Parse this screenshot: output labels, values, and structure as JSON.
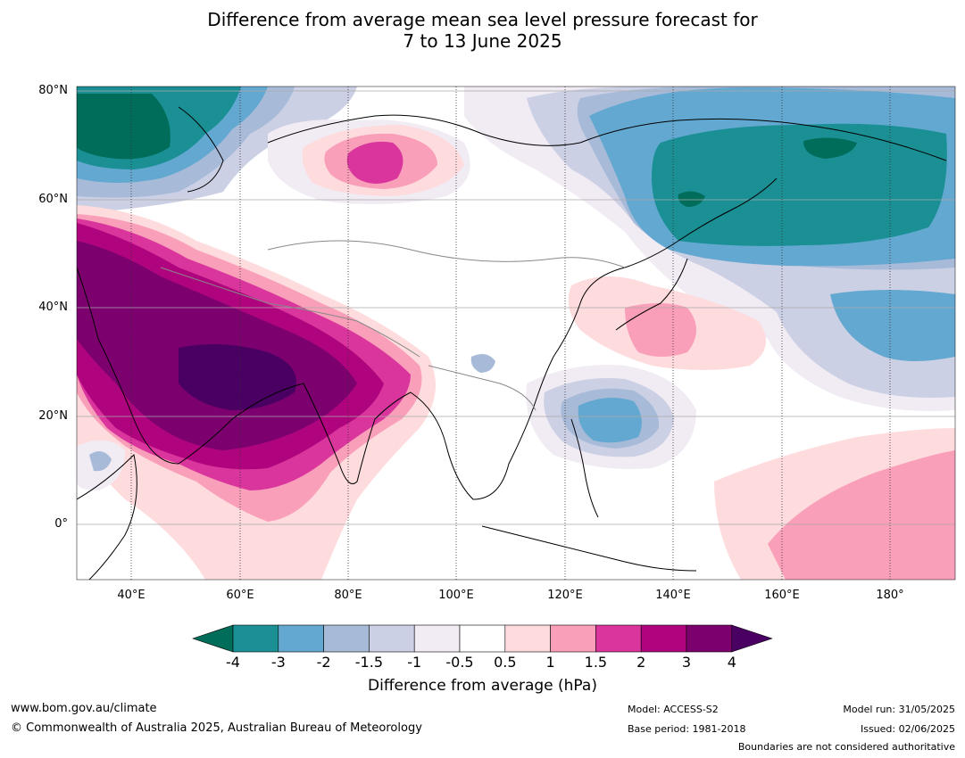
{
  "title": {
    "line1": "Difference from average mean sea level pressure forecast for",
    "line2": "7 to 13 June 2025"
  },
  "map": {
    "lat_labels": [
      "80°N",
      "60°N",
      "40°N",
      "20°N",
      "0°"
    ],
    "lon_labels": [
      "40°E",
      "60°E",
      "80°E",
      "100°E",
      "120°E",
      "140°E",
      "160°E",
      "180°"
    ],
    "lon_range": [
      30,
      192
    ],
    "lat_range": [
      -10,
      81
    ],
    "anomaly_regions": [
      {
        "name": "north-atlantic-low",
        "value": -4
      },
      {
        "name": "siberia-east-low",
        "value": -3
      },
      {
        "name": "middle-east-high",
        "value": 4
      },
      {
        "name": "arctic-russia-high",
        "value": 1.5
      },
      {
        "name": "japan-high",
        "value": 1
      },
      {
        "name": "philippine-sea-low",
        "value": -2
      },
      {
        "name": "central-pacific-high",
        "value": 1
      }
    ]
  },
  "colorbar": {
    "ticks": [
      "-4",
      "-3",
      "-2",
      "-1.5",
      "-1",
      "-0.5",
      "0.5",
      "1",
      "1.5",
      "2",
      "3",
      "4"
    ],
    "colors": [
      "#1a8f94",
      "#63a8d0",
      "#a7bbd9",
      "#ccd0e4",
      "#f1ebf3",
      "#ffffff",
      "#fedcde",
      "#f99fb9",
      "#d9359c",
      "#b0047e",
      "#7c016f"
    ],
    "under_color": "#006d5b",
    "over_color": "#4a0062",
    "label": "Difference from average (hPa)"
  },
  "footer": {
    "website": "www.bom.gov.au/climate",
    "copyright": "© Commonwealth of Australia 2025, Australian Bureau of Meteorology",
    "model": "Model: ACCESS-S2",
    "base_period": "Base period: 1981-2018",
    "model_run": "Model run: 31/05/2025",
    "issued": "Issued: 02/06/2025",
    "disclaimer": "Boundaries are not considered authoritative"
  }
}
